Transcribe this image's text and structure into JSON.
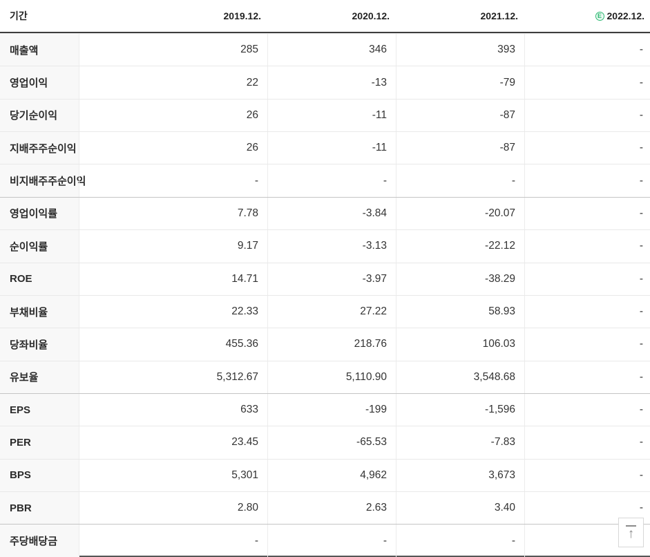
{
  "header": {
    "period_label": "기간",
    "columns": [
      "2019.12.",
      "2020.12.",
      "2021.12.",
      "2022.12."
    ],
    "estimate_badge": "E"
  },
  "colors": {
    "negative_value": "#4683d9",
    "estimate_green": "#2eb872"
  },
  "rows": [
    {
      "label": "매출액",
      "values": [
        "285",
        "346",
        "393",
        "-"
      ]
    },
    {
      "label": "영업이익",
      "values": [
        "22",
        "-13",
        "-79",
        "-"
      ]
    },
    {
      "label": "당기순이익",
      "values": [
        "26",
        "-11",
        "-87",
        "-"
      ]
    },
    {
      "label": "지배주주순이익",
      "values": [
        "26",
        "-11",
        "-87",
        "-"
      ]
    },
    {
      "label": "비지배주주순이익",
      "values": [
        "-",
        "-",
        "-",
        "-"
      ]
    },
    {
      "label": "영업이익률",
      "values": [
        "7.78",
        "-3.84",
        "-20.07",
        "-"
      ]
    },
    {
      "label": "순이익률",
      "values": [
        "9.17",
        "-3.13",
        "-22.12",
        "-"
      ]
    },
    {
      "label": "ROE",
      "values": [
        "14.71",
        "-3.97",
        "-38.29",
        "-"
      ]
    },
    {
      "label": "부채비율",
      "values": [
        "22.33",
        "27.22",
        "58.93",
        "-"
      ]
    },
    {
      "label": "당좌비율",
      "values": [
        "455.36",
        "218.76",
        "106.03",
        "-"
      ]
    },
    {
      "label": "유보율",
      "values": [
        "5,312.67",
        "5,110.90",
        "3,548.68",
        "-"
      ]
    },
    {
      "label": "EPS",
      "values": [
        "633",
        "-199",
        "-1,596",
        "-"
      ]
    },
    {
      "label": "PER",
      "values": [
        "23.45",
        "-65.53",
        "-7.83",
        "-"
      ]
    },
    {
      "label": "BPS",
      "values": [
        "5,301",
        "4,962",
        "3,673",
        "-"
      ]
    },
    {
      "label": "PBR",
      "values": [
        "2.80",
        "2.63",
        "3.40",
        "-"
      ]
    },
    {
      "label": "주당배당금",
      "values": [
        "-",
        "-",
        "-",
        "-"
      ]
    }
  ],
  "scroll_top_button": {
    "icon": "↑"
  }
}
